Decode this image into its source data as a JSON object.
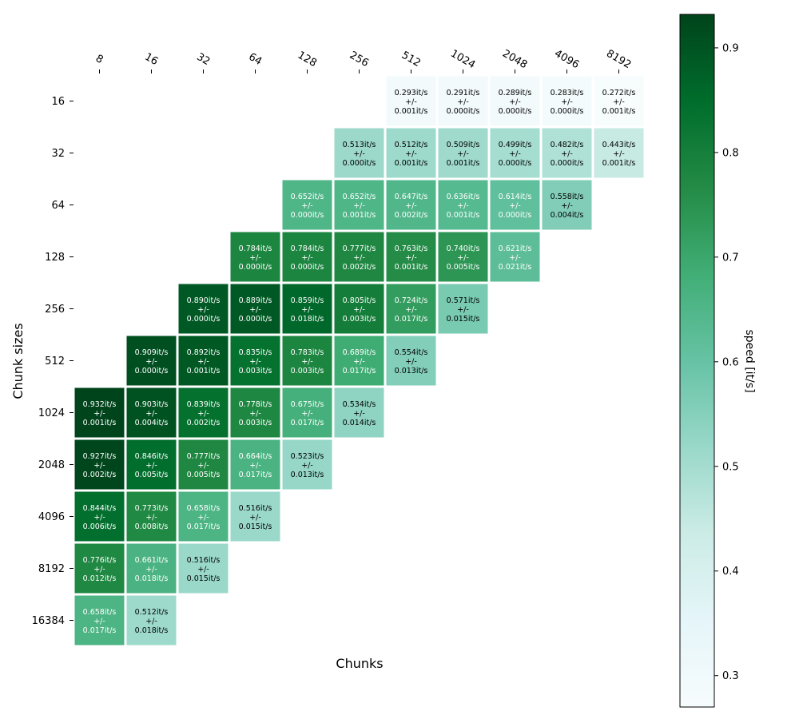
{
  "chart_data": {
    "type": "heatmap",
    "xlabel": "Chunks",
    "ylabel": "Chunk sizes",
    "colorbar_label": "speed [it/s]",
    "x_categories": [
      "8",
      "16",
      "32",
      "64",
      "128",
      "256",
      "512",
      "1024",
      "2048",
      "4096",
      "8192"
    ],
    "y_categories": [
      "16",
      "32",
      "64",
      "128",
      "256",
      "512",
      "1024",
      "2048",
      "4096",
      "8192",
      "16384"
    ],
    "colorscale": "BuGn",
    "color_range": [
      0.27,
      0.932
    ],
    "colorbar_ticks": [
      "0.3",
      "0.4",
      "0.5",
      "0.6",
      "0.7",
      "0.8",
      "0.9"
    ],
    "unit": "it/s",
    "cells": [
      {
        "x": "512",
        "y": "16",
        "value": 0.293,
        "err": 0.001
      },
      {
        "x": "1024",
        "y": "16",
        "value": 0.291,
        "err": 0.0
      },
      {
        "x": "2048",
        "y": "16",
        "value": 0.289,
        "err": 0.0
      },
      {
        "x": "4096",
        "y": "16",
        "value": 0.283,
        "err": 0.0
      },
      {
        "x": "8192",
        "y": "16",
        "value": 0.272,
        "err": 0.001
      },
      {
        "x": "256",
        "y": "32",
        "value": 0.513,
        "err": 0.0
      },
      {
        "x": "512",
        "y": "32",
        "value": 0.512,
        "err": 0.001
      },
      {
        "x": "1024",
        "y": "32",
        "value": 0.509,
        "err": 0.001
      },
      {
        "x": "2048",
        "y": "32",
        "value": 0.499,
        "err": 0.0
      },
      {
        "x": "4096",
        "y": "32",
        "value": 0.482,
        "err": 0.0
      },
      {
        "x": "8192",
        "y": "32",
        "value": 0.443,
        "err": 0.001
      },
      {
        "x": "128",
        "y": "64",
        "value": 0.652,
        "err": 0.0
      },
      {
        "x": "256",
        "y": "64",
        "value": 0.652,
        "err": 0.001
      },
      {
        "x": "512",
        "y": "64",
        "value": 0.647,
        "err": 0.002
      },
      {
        "x": "1024",
        "y": "64",
        "value": 0.636,
        "err": 0.001
      },
      {
        "x": "2048",
        "y": "64",
        "value": 0.614,
        "err": 0.0
      },
      {
        "x": "4096",
        "y": "64",
        "value": 0.558,
        "err": 0.004
      },
      {
        "x": "64",
        "y": "128",
        "value": 0.784,
        "err": 0.0
      },
      {
        "x": "128",
        "y": "128",
        "value": 0.784,
        "err": 0.0
      },
      {
        "x": "256",
        "y": "128",
        "value": 0.777,
        "err": 0.002
      },
      {
        "x": "512",
        "y": "128",
        "value": 0.763,
        "err": 0.001
      },
      {
        "x": "1024",
        "y": "128",
        "value": 0.74,
        "err": 0.005
      },
      {
        "x": "2048",
        "y": "128",
        "value": 0.621,
        "err": 0.021
      },
      {
        "x": "32",
        "y": "256",
        "value": 0.89,
        "err": 0.0
      },
      {
        "x": "64",
        "y": "256",
        "value": 0.889,
        "err": 0.0
      },
      {
        "x": "128",
        "y": "256",
        "value": 0.859,
        "err": 0.018
      },
      {
        "x": "256",
        "y": "256",
        "value": 0.805,
        "err": 0.003
      },
      {
        "x": "512",
        "y": "256",
        "value": 0.724,
        "err": 0.017
      },
      {
        "x": "1024",
        "y": "256",
        "value": 0.571,
        "err": 0.015
      },
      {
        "x": "16",
        "y": "512",
        "value": 0.909,
        "err": 0.0
      },
      {
        "x": "32",
        "y": "512",
        "value": 0.892,
        "err": 0.001
      },
      {
        "x": "64",
        "y": "512",
        "value": 0.835,
        "err": 0.003
      },
      {
        "x": "128",
        "y": "512",
        "value": 0.783,
        "err": 0.003
      },
      {
        "x": "256",
        "y": "512",
        "value": 0.689,
        "err": 0.017
      },
      {
        "x": "512",
        "y": "512",
        "value": 0.554,
        "err": 0.013
      },
      {
        "x": "8",
        "y": "1024",
        "value": 0.932,
        "err": 0.001
      },
      {
        "x": "16",
        "y": "1024",
        "value": 0.903,
        "err": 0.004
      },
      {
        "x": "32",
        "y": "1024",
        "value": 0.839,
        "err": 0.002
      },
      {
        "x": "64",
        "y": "1024",
        "value": 0.778,
        "err": 0.003
      },
      {
        "x": "128",
        "y": "1024",
        "value": 0.675,
        "err": 0.017
      },
      {
        "x": "256",
        "y": "1024",
        "value": 0.534,
        "err": 0.014
      },
      {
        "x": "8",
        "y": "2048",
        "value": 0.927,
        "err": 0.002
      },
      {
        "x": "16",
        "y": "2048",
        "value": 0.846,
        "err": 0.005
      },
      {
        "x": "32",
        "y": "2048",
        "value": 0.777,
        "err": 0.005
      },
      {
        "x": "64",
        "y": "2048",
        "value": 0.664,
        "err": 0.017
      },
      {
        "x": "128",
        "y": "2048",
        "value": 0.523,
        "err": 0.013
      },
      {
        "x": "8",
        "y": "4096",
        "value": 0.844,
        "err": 0.006
      },
      {
        "x": "16",
        "y": "4096",
        "value": 0.773,
        "err": 0.008
      },
      {
        "x": "32",
        "y": "4096",
        "value": 0.658,
        "err": 0.017
      },
      {
        "x": "64",
        "y": "4096",
        "value": 0.516,
        "err": 0.015
      },
      {
        "x": "8",
        "y": "8192",
        "value": 0.776,
        "err": 0.012
      },
      {
        "x": "16",
        "y": "8192",
        "value": 0.661,
        "err": 0.018
      },
      {
        "x": "32",
        "y": "8192",
        "value": 0.516,
        "err": 0.015
      },
      {
        "x": "8",
        "y": "16384",
        "value": 0.658,
        "err": 0.017
      },
      {
        "x": "16",
        "y": "16384",
        "value": 0.512,
        "err": 0.018
      }
    ]
  }
}
